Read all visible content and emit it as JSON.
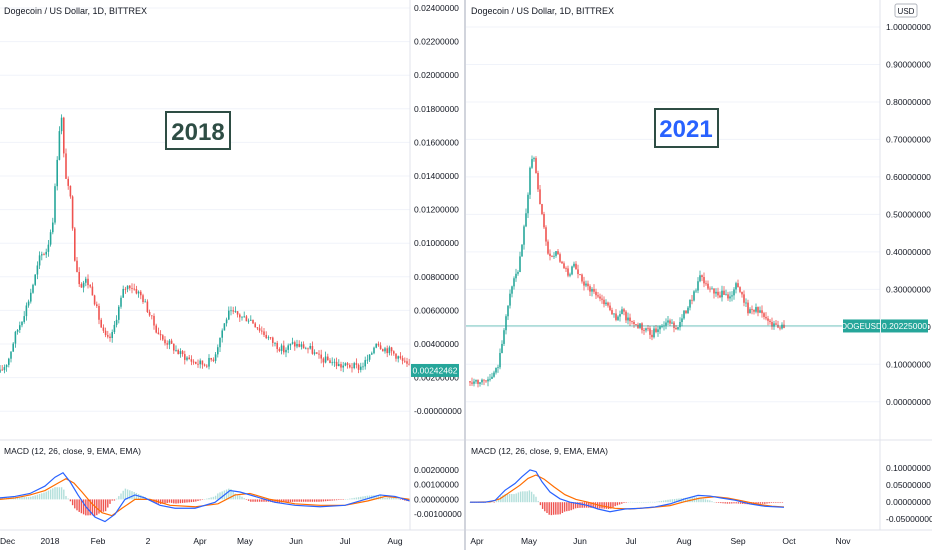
{
  "colors": {
    "up": "#26a69a",
    "down": "#ef5350",
    "macd_line": "#2962ff",
    "signal_line": "#ff6d00",
    "hist_up": "#b2dfdb",
    "hist_down": "#ef5350",
    "price_badge": "#26a69a",
    "grid": "#f0f3fa",
    "axis_text": "#131722",
    "label_2018_border": "#2e4d44",
    "label_2018_text": "#2e4d44",
    "label_2021_text": "#2962ff"
  },
  "chart_data": [
    {
      "type": "candlestick",
      "panel": "left",
      "title": "Dogecoin / US Dollar, 1D, BITTREX",
      "annotation": "2018",
      "ylim": [
        -0.001,
        0.024
      ],
      "y_ticks": [
        "-0.00000000",
        "0.00200000",
        "0.00400000",
        "0.00600000",
        "0.00800000",
        "0.01000000",
        "0.01200000",
        "0.01400000",
        "0.01600000",
        "0.01800000",
        "0.02000000",
        "0.02200000",
        "0.02400000"
      ],
      "y_tick_values": [
        0,
        0.002,
        0.004,
        0.006,
        0.008,
        0.01,
        0.012,
        0.014,
        0.016,
        0.018,
        0.02,
        0.022,
        0.024
      ],
      "x_ticks": [
        "Dec",
        "2018",
        "Feb",
        "2",
        "Apr",
        "May",
        "Jun",
        "Jul",
        "Aug"
      ],
      "last_price": "0.00242462",
      "last_price_value": 0.00242462,
      "price_path": [
        [
          0,
          0.0023
        ],
        [
          8,
          0.003
        ],
        [
          15,
          0.0045
        ],
        [
          22,
          0.0055
        ],
        [
          28,
          0.0065
        ],
        [
          35,
          0.008
        ],
        [
          40,
          0.0092
        ],
        [
          47,
          0.0096
        ],
        [
          53,
          0.0115
        ],
        [
          57,
          0.015
        ],
        [
          61,
          0.018
        ],
        [
          64,
          0.015
        ],
        [
          67,
          0.0135
        ],
        [
          71,
          0.0125
        ],
        [
          75,
          0.009
        ],
        [
          80,
          0.0075
        ],
        [
          86,
          0.0078
        ],
        [
          92,
          0.0072
        ],
        [
          97,
          0.006
        ],
        [
          102,
          0.0048
        ],
        [
          107,
          0.0042
        ],
        [
          112,
          0.0045
        ],
        [
          118,
          0.006
        ],
        [
          124,
          0.0073
        ],
        [
          130,
          0.0075
        ],
        [
          136,
          0.0072
        ],
        [
          142,
          0.0068
        ],
        [
          148,
          0.006
        ],
        [
          155,
          0.005
        ],
        [
          162,
          0.0043
        ],
        [
          170,
          0.004
        ],
        [
          178,
          0.0035
        ],
        [
          186,
          0.0032
        ],
        [
          195,
          0.0029
        ],
        [
          205,
          0.0028
        ],
        [
          214,
          0.0032
        ],
        [
          222,
          0.0048
        ],
        [
          228,
          0.0058
        ],
        [
          235,
          0.0058
        ],
        [
          242,
          0.0056
        ],
        [
          250,
          0.0055
        ],
        [
          258,
          0.005
        ],
        [
          266,
          0.0045
        ],
        [
          275,
          0.004
        ],
        [
          284,
          0.0036
        ],
        [
          292,
          0.004
        ],
        [
          300,
          0.0039
        ],
        [
          310,
          0.0037
        ],
        [
          320,
          0.0031
        ],
        [
          330,
          0.003
        ],
        [
          340,
          0.0027
        ],
        [
          350,
          0.0027
        ],
        [
          360,
          0.0026
        ],
        [
          370,
          0.0032
        ],
        [
          376,
          0.0042
        ],
        [
          382,
          0.0038
        ],
        [
          390,
          0.0036
        ],
        [
          397,
          0.0033
        ],
        [
          405,
          0.0028
        ],
        [
          410,
          0.0025
        ]
      ],
      "macd": {
        "title": "MACD (12, 26, close, 9, EMA, EMA)",
        "y_ticks": [
          "0.00200000",
          "0.00100000",
          "0.00000000",
          "-0.00100000"
        ],
        "y_tick_values": [
          0.002,
          0.001,
          0,
          -0.001
        ],
        "ylim": [
          -0.0018,
          0.0028
        ],
        "macd_line": [
          [
            0,
            0.0001
          ],
          [
            15,
            0.0002
          ],
          [
            30,
            0.0004
          ],
          [
            45,
            0.0009
          ],
          [
            55,
            0.0015
          ],
          [
            63,
            0.0018
          ],
          [
            70,
            0.0012
          ],
          [
            78,
            0.0003
          ],
          [
            86,
            -0.0005
          ],
          [
            95,
            -0.0012
          ],
          [
            105,
            -0.0015
          ],
          [
            115,
            -0.001
          ],
          [
            125,
            0.0
          ],
          [
            135,
            0.0003
          ],
          [
            145,
            0.0001
          ],
          [
            160,
            -0.0004
          ],
          [
            175,
            -0.0006
          ],
          [
            195,
            -0.0006
          ],
          [
            215,
            -0.0002
          ],
          [
            230,
            0.0006
          ],
          [
            240,
            0.0005
          ],
          [
            255,
            0.0002
          ],
          [
            275,
            -0.0002
          ],
          [
            295,
            -0.0004
          ],
          [
            320,
            -0.0005
          ],
          [
            345,
            -0.0004
          ],
          [
            365,
            0.0
          ],
          [
            380,
            0.0003
          ],
          [
            395,
            0.0002
          ],
          [
            410,
            -0.0001
          ]
        ],
        "signal_line": [
          [
            0,
            0.0
          ],
          [
            15,
            0.0001
          ],
          [
            30,
            0.0003
          ],
          [
            45,
            0.0006
          ],
          [
            58,
            0.0011
          ],
          [
            66,
            0.0014
          ],
          [
            74,
            0.0011
          ],
          [
            82,
            0.0005
          ],
          [
            92,
            -0.0003
          ],
          [
            102,
            -0.0009
          ],
          [
            112,
            -0.0011
          ],
          [
            122,
            -0.0006
          ],
          [
            135,
            0.0
          ],
          [
            150,
            0.0
          ],
          [
            170,
            -0.0004
          ],
          [
            195,
            -0.0005
          ],
          [
            218,
            -0.0003
          ],
          [
            235,
            0.0003
          ],
          [
            250,
            0.0004
          ],
          [
            270,
            0.0
          ],
          [
            295,
            -0.0003
          ],
          [
            320,
            -0.0004
          ],
          [
            345,
            -0.0004
          ],
          [
            368,
            -0.0001
          ],
          [
            385,
            0.0002
          ],
          [
            400,
            0.0001
          ],
          [
            410,
            0.0
          ]
        ]
      }
    },
    {
      "type": "candlestick",
      "panel": "right",
      "title": "Dogecoin / US Dollar, 1D, BITTREX",
      "annotation": "2021",
      "ylim": [
        -0.07,
        1.04
      ],
      "y_ticks": [
        "0.00000000",
        "0.10000000",
        "0.20000000",
        "0.30000000",
        "0.40000000",
        "0.50000000",
        "0.60000000",
        "0.70000000",
        "0.80000000",
        "0.90000000",
        "1.00000000"
      ],
      "y_tick_values": [
        0,
        0.1,
        0.2,
        0.3,
        0.4,
        0.5,
        0.6,
        0.7,
        0.8,
        0.9,
        1.0
      ],
      "x_ticks": [
        "Apr",
        "May",
        "Jun",
        "Jul",
        "Aug",
        "Sep",
        "Oct",
        "Nov"
      ],
      "currency_badge": "USD",
      "symbol_label": "DOGEUSD",
      "last_price": "0.20225000",
      "last_price_value": 0.20225,
      "price_path": [
        [
          0,
          0.055
        ],
        [
          10,
          0.057
        ],
        [
          22,
          0.06
        ],
        [
          28,
          0.1
        ],
        [
          33,
          0.18
        ],
        [
          38,
          0.25
        ],
        [
          43,
          0.33
        ],
        [
          48,
          0.34
        ],
        [
          52,
          0.42
        ],
        [
          56,
          0.5
        ],
        [
          60,
          0.62
        ],
        [
          64,
          0.66
        ],
        [
          68,
          0.56
        ],
        [
          72,
          0.5
        ],
        [
          75,
          0.44
        ],
        [
          80,
          0.38
        ],
        [
          86,
          0.4
        ],
        [
          92,
          0.36
        ],
        [
          98,
          0.34
        ],
        [
          104,
          0.36
        ],
        [
          110,
          0.33
        ],
        [
          116,
          0.31
        ],
        [
          122,
          0.3
        ],
        [
          128,
          0.28
        ],
        [
          134,
          0.27
        ],
        [
          140,
          0.25
        ],
        [
          146,
          0.22
        ],
        [
          152,
          0.24
        ],
        [
          158,
          0.22
        ],
        [
          164,
          0.21
        ],
        [
          170,
          0.2
        ],
        [
          176,
          0.19
        ],
        [
          182,
          0.18
        ],
        [
          188,
          0.2
        ],
        [
          194,
          0.21
        ],
        [
          200,
          0.21
        ],
        [
          206,
          0.2
        ],
        [
          212,
          0.22
        ],
        [
          218,
          0.26
        ],
        [
          224,
          0.29
        ],
        [
          230,
          0.33
        ],
        [
          236,
          0.31
        ],
        [
          242,
          0.3
        ],
        [
          248,
          0.28
        ],
        [
          254,
          0.29
        ],
        [
          260,
          0.28
        ],
        [
          266,
          0.31
        ],
        [
          272,
          0.29
        ],
        [
          278,
          0.24
        ],
        [
          284,
          0.25
        ],
        [
          290,
          0.24
        ],
        [
          296,
          0.22
        ],
        [
          302,
          0.21
        ],
        [
          308,
          0.205
        ],
        [
          314,
          0.202
        ]
      ],
      "macd": {
        "title": "MACD (12, 26, close, 9, EMA, EMA)",
        "y_ticks": [
          "0.10000000",
          "0.05000000",
          "0.00000000",
          "-0.05000000"
        ],
        "y_tick_values": [
          0.1,
          0.05,
          0,
          -0.05
        ],
        "ylim": [
          -0.07,
          0.13
        ],
        "macd_line": [
          [
            0,
            0.0
          ],
          [
            15,
            0.0
          ],
          [
            25,
            0.005
          ],
          [
            35,
            0.035
          ],
          [
            45,
            0.055
          ],
          [
            52,
            0.075
          ],
          [
            60,
            0.095
          ],
          [
            66,
            0.09
          ],
          [
            72,
            0.06
          ],
          [
            80,
            0.03
          ],
          [
            90,
            0.01
          ],
          [
            100,
            0.0
          ],
          [
            110,
            -0.005
          ],
          [
            118,
            -0.01
          ],
          [
            128,
            -0.02
          ],
          [
            140,
            -0.028
          ],
          [
            155,
            -0.02
          ],
          [
            170,
            -0.018
          ],
          [
            185,
            -0.014
          ],
          [
            200,
            -0.005
          ],
          [
            215,
            0.01
          ],
          [
            228,
            0.02
          ],
          [
            240,
            0.018
          ],
          [
            252,
            0.012
          ],
          [
            265,
            0.006
          ],
          [
            280,
            -0.005
          ],
          [
            295,
            -0.012
          ],
          [
            314,
            -0.015
          ]
        ],
        "signal_line": [
          [
            0,
            0.0
          ],
          [
            20,
            0.001
          ],
          [
            30,
            0.01
          ],
          [
            40,
            0.03
          ],
          [
            50,
            0.05
          ],
          [
            58,
            0.07
          ],
          [
            66,
            0.08
          ],
          [
            74,
            0.068
          ],
          [
            84,
            0.045
          ],
          [
            95,
            0.022
          ],
          [
            106,
            0.008
          ],
          [
            118,
            0.0
          ],
          [
            130,
            -0.01
          ],
          [
            145,
            -0.018
          ],
          [
            160,
            -0.02
          ],
          [
            180,
            -0.016
          ],
          [
            200,
            -0.01
          ],
          [
            215,
            0.002
          ],
          [
            230,
            0.012
          ],
          [
            245,
            0.016
          ],
          [
            258,
            0.012
          ],
          [
            272,
            0.004
          ],
          [
            288,
            -0.006
          ],
          [
            302,
            -0.012
          ],
          [
            314,
            -0.014
          ]
        ]
      }
    }
  ]
}
